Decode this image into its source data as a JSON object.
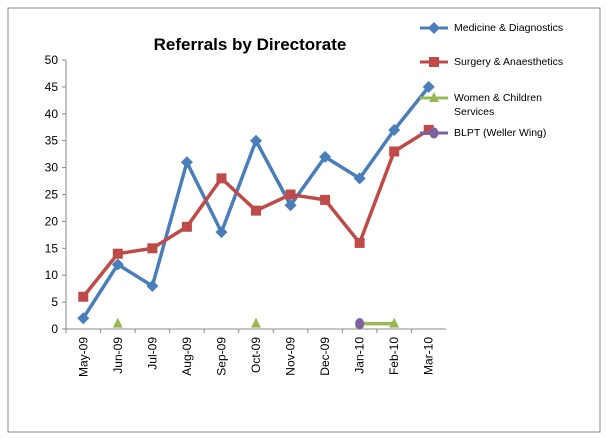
{
  "chart_data": {
    "type": "line",
    "title": "Referrals by Directorate",
    "categories": [
      "May-09",
      "Jun-09",
      "Jul-09",
      "Aug-09",
      "Sep-09",
      "Oct-09",
      "Nov-09",
      "Dec-09",
      "Jan-10",
      "Feb-10",
      "Mar-10"
    ],
    "series": [
      {
        "name": "Medicine & Diagnostics",
        "color": "#4a7ebb",
        "marker": "diamond",
        "values": [
          2,
          12,
          8,
          31,
          18,
          35,
          23,
          32,
          28,
          37,
          45
        ]
      },
      {
        "name": "Surgery & Anaesthetics",
        "color": "#be4b48",
        "marker": "square",
        "values": [
          6,
          14,
          15,
          19,
          28,
          22,
          25,
          24,
          16,
          33,
          37
        ]
      },
      {
        "name": "Women & Children Services",
        "color": "#98b954",
        "marker": "triangle",
        "values": [
          null,
          1,
          null,
          null,
          null,
          1,
          null,
          null,
          1,
          1,
          null
        ]
      },
      {
        "name": "BLPT (Weller Wing)",
        "color": "#7d60a0",
        "marker": "circle",
        "values": [
          null,
          null,
          null,
          null,
          null,
          null,
          null,
          null,
          1,
          null,
          null
        ]
      }
    ],
    "ylim": [
      0,
      50
    ],
    "yticks": [
      0,
      5,
      10,
      15,
      20,
      25,
      30,
      35,
      40,
      45,
      50
    ],
    "grid": false,
    "legend": "right"
  }
}
